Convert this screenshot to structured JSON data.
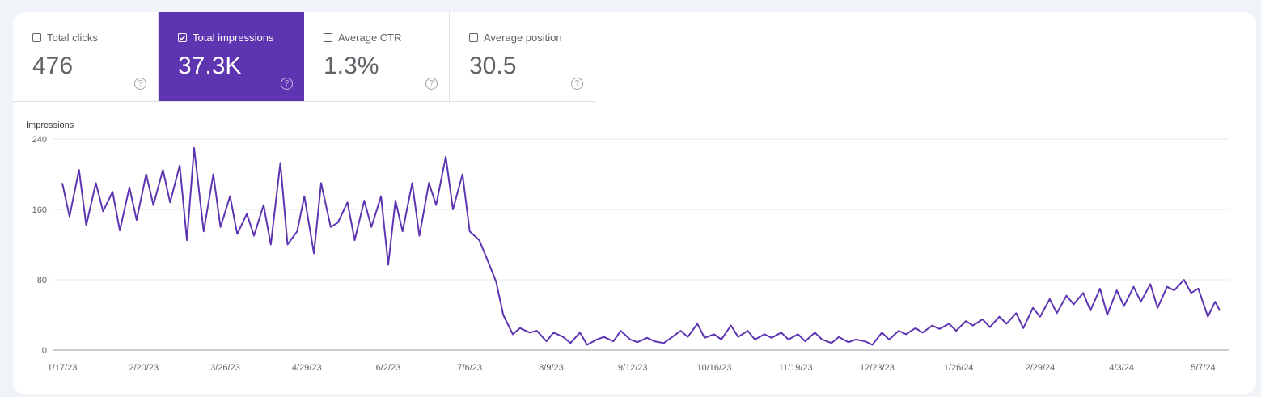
{
  "metrics": [
    {
      "label": "Total clicks",
      "value": "476",
      "selected": false
    },
    {
      "label": "Total impressions",
      "value": "37.3K",
      "selected": true
    },
    {
      "label": "Average CTR",
      "value": "1.3%",
      "selected": false
    },
    {
      "label": "Average position",
      "value": "30.5",
      "selected": false
    }
  ],
  "help_glyph": "?",
  "colors": {
    "accent": "#5e35b1",
    "background": "#f0f4f9"
  },
  "chart_data": {
    "type": "line",
    "ylabel": "Impressions",
    "ylim": [
      0,
      240
    ],
    "yticks": [
      "0",
      "80",
      "160",
      "240"
    ],
    "xticks": [
      "1/17/23",
      "2/20/23",
      "3/26/23",
      "4/29/23",
      "6/2/23",
      "7/6/23",
      "8/9/23",
      "9/12/23",
      "10/16/23",
      "11/19/23",
      "12/23/23",
      "1/26/24",
      "2/29/24",
      "4/3/24",
      "5/7/24"
    ],
    "grid": true,
    "series": [
      {
        "color": "#5e35b1",
        "points": [
          [
            "1/17/23",
            190
          ],
          [
            "1/20/23",
            152
          ],
          [
            "1/24/23",
            205
          ],
          [
            "1/27/23",
            142
          ],
          [
            "1/31/23",
            190
          ],
          [
            "2/3/23",
            158
          ],
          [
            "2/7/23",
            180
          ],
          [
            "2/10/23",
            136
          ],
          [
            "2/14/23",
            185
          ],
          [
            "2/17/23",
            148
          ],
          [
            "2/21/23",
            200
          ],
          [
            "2/24/23",
            165
          ],
          [
            "2/28/23",
            205
          ],
          [
            "3/3/23",
            168
          ],
          [
            "3/7/23",
            210
          ],
          [
            "3/10/23",
            125
          ],
          [
            "3/13/23",
            230
          ],
          [
            "3/17/23",
            135
          ],
          [
            "3/21/23",
            200
          ],
          [
            "3/24/23",
            140
          ],
          [
            "3/28/23",
            175
          ],
          [
            "3/31/23",
            132
          ],
          [
            "4/4/23",
            155
          ],
          [
            "4/7/23",
            130
          ],
          [
            "4/11/23",
            165
          ],
          [
            "4/14/23",
            120
          ],
          [
            "4/18/23",
            213
          ],
          [
            "4/21/23",
            120
          ],
          [
            "4/25/23",
            135
          ],
          [
            "4/28/23",
            175
          ],
          [
            "5/2/23",
            110
          ],
          [
            "5/5/23",
            190
          ],
          [
            "5/9/23",
            140
          ],
          [
            "5/12/23",
            145
          ],
          [
            "5/16/23",
            168
          ],
          [
            "5/19/23",
            125
          ],
          [
            "5/23/23",
            170
          ],
          [
            "5/26/23",
            140
          ],
          [
            "5/30/23",
            175
          ],
          [
            "6/2/23",
            97
          ],
          [
            "6/5/23",
            170
          ],
          [
            "6/8/23",
            135
          ],
          [
            "6/12/23",
            190
          ],
          [
            "6/15/23",
            130
          ],
          [
            "6/19/23",
            190
          ],
          [
            "6/22/23",
            165
          ],
          [
            "6/26/23",
            220
          ],
          [
            "6/29/23",
            160
          ],
          [
            "7/3/23",
            200
          ],
          [
            "7/6/23",
            135
          ],
          [
            "7/10/23",
            125
          ],
          [
            "7/13/23",
            105
          ],
          [
            "7/17/23",
            78
          ],
          [
            "7/20/23",
            40
          ],
          [
            "7/24/23",
            18
          ],
          [
            "7/27/23",
            25
          ],
          [
            "7/31/23",
            20
          ],
          [
            "8/3/23",
            22
          ],
          [
            "8/7/23",
            10
          ],
          [
            "8/10/23",
            20
          ],
          [
            "8/14/23",
            15
          ],
          [
            "8/17/23",
            8
          ],
          [
            "8/21/23",
            20
          ],
          [
            "8/24/23",
            6
          ],
          [
            "8/28/23",
            12
          ],
          [
            "8/31/23",
            15
          ],
          [
            "9/4/23",
            10
          ],
          [
            "9/7/23",
            22
          ],
          [
            "9/11/23",
            12
          ],
          [
            "9/14/23",
            9
          ],
          [
            "9/18/23",
            14
          ],
          [
            "9/21/23",
            10
          ],
          [
            "9/25/23",
            8
          ],
          [
            "9/28/23",
            14
          ],
          [
            "10/2/23",
            22
          ],
          [
            "10/5/23",
            15
          ],
          [
            "10/9/23",
            30
          ],
          [
            "10/12/23",
            14
          ],
          [
            "10/16/23",
            18
          ],
          [
            "10/19/23",
            12
          ],
          [
            "10/23/23",
            28
          ],
          [
            "10/26/23",
            15
          ],
          [
            "10/30/23",
            22
          ],
          [
            "11/2/23",
            12
          ],
          [
            "11/6/23",
            18
          ],
          [
            "11/9/23",
            14
          ],
          [
            "11/13/23",
            20
          ],
          [
            "11/16/23",
            12
          ],
          [
            "11/20/23",
            18
          ],
          [
            "11/23/23",
            10
          ],
          [
            "11/27/23",
            20
          ],
          [
            "11/30/23",
            12
          ],
          [
            "12/4/23",
            8
          ],
          [
            "12/7/23",
            15
          ],
          [
            "12/11/23",
            9
          ],
          [
            "12/14/23",
            12
          ],
          [
            "12/18/23",
            10
          ],
          [
            "12/21/23",
            6
          ],
          [
            "12/25/23",
            20
          ],
          [
            "12/28/23",
            12
          ],
          [
            "1/1/24",
            22
          ],
          [
            "1/4/24",
            18
          ],
          [
            "1/8/24",
            25
          ],
          [
            "1/11/24",
            20
          ],
          [
            "1/15/24",
            28
          ],
          [
            "1/18/24",
            24
          ],
          [
            "1/22/24",
            30
          ],
          [
            "1/25/24",
            22
          ],
          [
            "1/29/24",
            33
          ],
          [
            "2/1/24",
            28
          ],
          [
            "2/5/24",
            35
          ],
          [
            "2/8/24",
            26
          ],
          [
            "2/12/24",
            38
          ],
          [
            "2/15/24",
            30
          ],
          [
            "2/19/24",
            42
          ],
          [
            "2/22/24",
            25
          ],
          [
            "2/26/24",
            48
          ],
          [
            "2/29/24",
            38
          ],
          [
            "3/4/24",
            58
          ],
          [
            "3/7/24",
            42
          ],
          [
            "3/11/24",
            62
          ],
          [
            "3/14/24",
            52
          ],
          [
            "3/18/24",
            65
          ],
          [
            "3/21/24",
            45
          ],
          [
            "3/25/24",
            70
          ],
          [
            "3/28/24",
            40
          ],
          [
            "4/1/24",
            68
          ],
          [
            "4/4/24",
            50
          ],
          [
            "4/8/24",
            72
          ],
          [
            "4/11/24",
            55
          ],
          [
            "4/15/24",
            75
          ],
          [
            "4/18/24",
            48
          ],
          [
            "4/22/24",
            72
          ],
          [
            "4/25/24",
            68
          ],
          [
            "4/29/24",
            80
          ],
          [
            "5/2/24",
            65
          ],
          [
            "5/5/24",
            70
          ],
          [
            "5/9/24",
            38
          ],
          [
            "5/12/24",
            55
          ],
          [
            "5/14/24",
            45
          ]
        ]
      }
    ]
  }
}
